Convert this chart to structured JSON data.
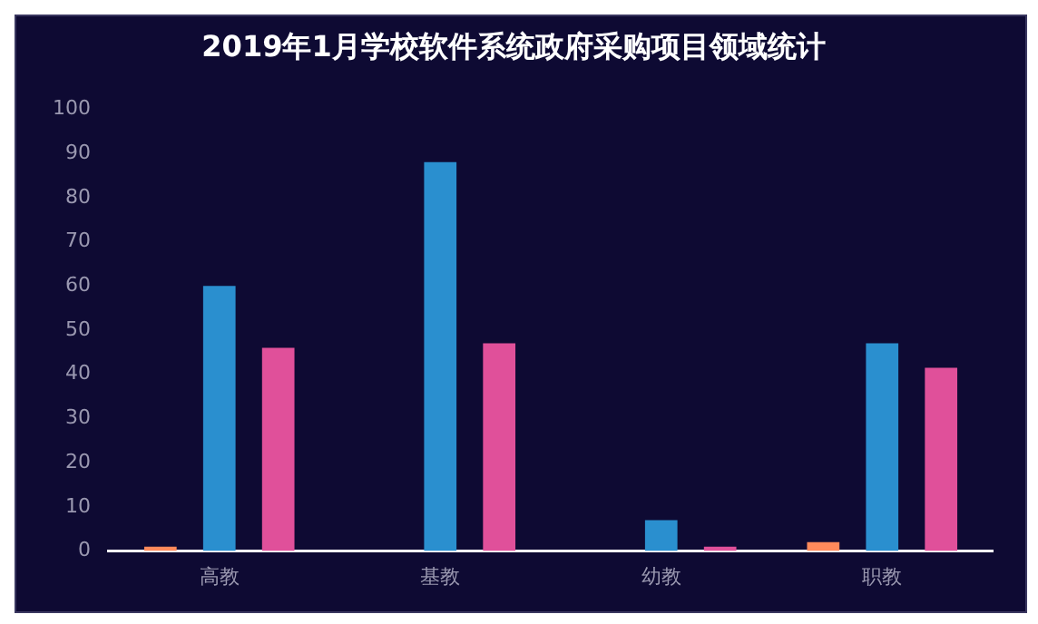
{
  "chart_data": {
    "type": "bar",
    "title": "2019年1月学校软件系统政府采购项目领域统计",
    "categories": [
      "高教",
      "基教",
      "幼教",
      "职教"
    ],
    "series": [
      {
        "color": "#ff8a5b",
        "values": [
          1,
          0,
          0,
          2
        ]
      },
      {
        "color": "#2a8fcf",
        "values": [
          60,
          88,
          7,
          47
        ]
      },
      {
        "color": "#e0509a",
        "values": [
          46,
          47,
          1,
          41.5
        ]
      }
    ],
    "ylim": [
      0,
      100
    ],
    "yticks": [
      0,
      10,
      20,
      30,
      40,
      50,
      60,
      70,
      80,
      90,
      100
    ],
    "grid": false,
    "legend": false
  }
}
